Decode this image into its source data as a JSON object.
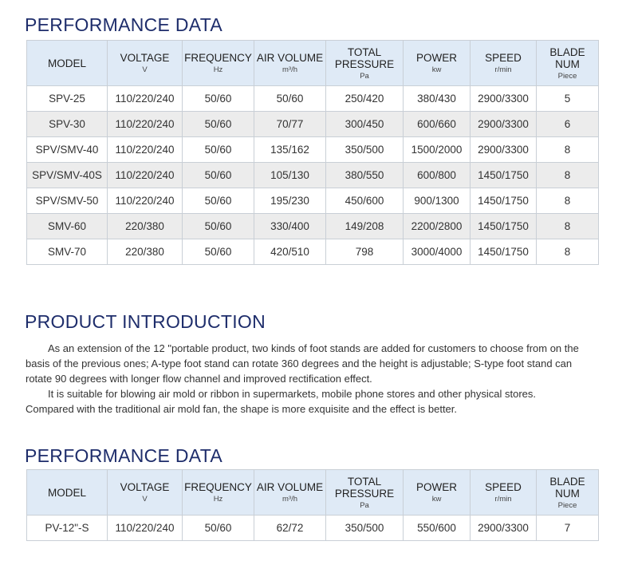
{
  "sections": [
    {
      "title": "PERFORMANCE DATA",
      "table": {
        "headers": [
          {
            "name": "MODEL"
          },
          {
            "name": "VOLTAGE",
            "unit": "V"
          },
          {
            "name": "FREQUENCY",
            "unit": "Hz"
          },
          {
            "name": "AIR VOLUME",
            "unit": "m³/h"
          },
          {
            "name": "TOTAL PRESSURE",
            "unit": "Pa"
          },
          {
            "name": "POWER",
            "unit": "kw"
          },
          {
            "name": "SPEED",
            "unit": "r/min"
          },
          {
            "name": "BLADE NUM",
            "unit": "Piece"
          }
        ],
        "rows": [
          [
            "SPV-25",
            "110/220/240",
            "50/60",
            "50/60",
            "250/420",
            "380/430",
            "2900/3300",
            "5"
          ],
          [
            "SPV-30",
            "110/220/240",
            "50/60",
            "70/77",
            "300/450",
            "600/660",
            "2900/3300",
            "6"
          ],
          [
            "SPV/SMV-40",
            "110/220/240",
            "50/60",
            "135/162",
            "350/500",
            "1500/2000",
            "2900/3300",
            "8"
          ],
          [
            "SPV/SMV-40S",
            "110/220/240",
            "50/60",
            "105/130",
            "380/550",
            "600/800",
            "1450/1750",
            "8"
          ],
          [
            "SPV/SMV-50",
            "110/220/240",
            "50/60",
            "195/230",
            "450/600",
            "900/1300",
            "1450/1750",
            "8"
          ],
          [
            "SMV-60",
            "220/380",
            "50/60",
            "330/400",
            "149/208",
            "2200/2800",
            "1450/1750",
            "8"
          ],
          [
            "SMV-70",
            "220/380",
            "50/60",
            "420/510",
            "798",
            "3000/4000",
            "1450/1750",
            "8"
          ]
        ]
      }
    },
    {
      "title": "PRODUCT INTRODUCTION",
      "paragraphs": [
        "As an extension of the 12 \"portable product, two kinds of foot stands are added for customers to choose from on the basis of the previous ones; A-type foot stand can rotate 360 degrees and the height is adjustable; S-type foot stand can rotate 90 degrees with longer flow channel and improved rectification effect.",
        "It is suitable for blowing air mold or ribbon in supermarkets, mobile phone stores and other physical stores. Compared with the traditional air mold fan, the shape is more exquisite and the effect is better."
      ]
    },
    {
      "title": "PERFORMANCE DATA",
      "table": {
        "headers": [
          {
            "name": "MODEL"
          },
          {
            "name": "VOLTAGE",
            "unit": "V"
          },
          {
            "name": "FREQUENCY",
            "unit": "Hz"
          },
          {
            "name": "AIR VOLUME",
            "unit": "m³/h"
          },
          {
            "name": "TOTAL PRESSURE",
            "unit": "Pa"
          },
          {
            "name": "POWER",
            "unit": "kw"
          },
          {
            "name": "SPEED",
            "unit": "r/min"
          },
          {
            "name": "BLADE NUM",
            "unit": "Piece"
          }
        ],
        "rows": [
          [
            "PV-12\"-S",
            "110/220/240",
            "50/60",
            "62/72",
            "350/500",
            "550/600",
            "2900/3300",
            "7"
          ]
        ]
      }
    }
  ]
}
